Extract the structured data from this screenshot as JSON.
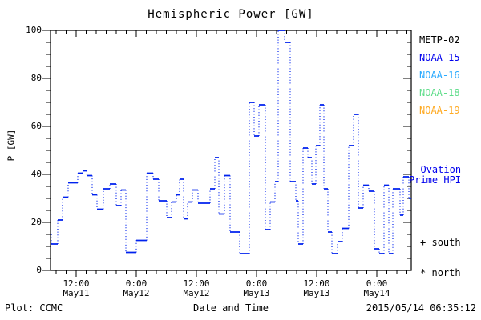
{
  "title": "Hemispheric Power [GW]",
  "axes": {
    "y_label": "P [GW]",
    "x_label": "Date and Time",
    "y_ticks": [
      0,
      20,
      40,
      60,
      80,
      100
    ],
    "y_minor_step": 5,
    "x_major_ticks": [
      {
        "hour": 12,
        "time": "12:00",
        "date": "May11"
      },
      {
        "hour": 24,
        "time": "0:00",
        "date": "May12"
      },
      {
        "hour": 36,
        "time": "12:00",
        "date": "May12"
      },
      {
        "hour": 48,
        "time": "0:00",
        "date": "May13"
      },
      {
        "hour": 60,
        "time": "12:00",
        "date": "May13"
      },
      {
        "hour": 72,
        "time": "0:00",
        "date": "May14"
      }
    ],
    "x_minor_step_hours": 2
  },
  "legend": {
    "satellites": [
      {
        "label": "METP-02",
        "color": "#000000"
      },
      {
        "label": "NOAA-15",
        "color": "#0000ee"
      },
      {
        "label": "NOAA-16",
        "color": "#2aaaff"
      },
      {
        "label": "NOAA-18",
        "color": "#5fdd8a"
      },
      {
        "label": "NOAA-19",
        "color": "#ffaa22"
      }
    ],
    "model_dash": "—",
    "model_line1": "Ovation",
    "model_line2": "Prime HPI",
    "model_color": "#0000ee",
    "marker_south_symbol": "+",
    "marker_south_label": "south",
    "marker_north_symbol": "*",
    "marker_north_label": "north"
  },
  "footer": {
    "left": "Plot: CCMC",
    "right": "2015/05/14 06:35:12"
  },
  "chart_data": {
    "type": "line",
    "title": "Hemispheric Power [GW]",
    "xlabel": "Date and Time",
    "ylabel": "P [GW]",
    "ylim": [
      0,
      100
    ],
    "x_unit": "hours since 2015-05-11 00:00 UT",
    "x_range_hours": [
      6.88,
      78.88
    ],
    "series_name": "Ovation Prime HPI",
    "line_color": "#0022ee",
    "style": "solid horizontal step segments joined by dotted vertical connectors",
    "grid": false,
    "steps_format": [
      "t_start_hours",
      "t_end_hours",
      "power_GW"
    ],
    "steps": [
      [
        6.88,
        7.04,
        15
      ],
      [
        7.04,
        8.32,
        11
      ],
      [
        8.32,
        9.28,
        21
      ],
      [
        9.28,
        10.4,
        30.5
      ],
      [
        10.4,
        12.32,
        36.5
      ],
      [
        12.32,
        13.28,
        40.5
      ],
      [
        13.28,
        14.08,
        41.5
      ],
      [
        14.08,
        15.2,
        39.5
      ],
      [
        15.2,
        16.16,
        31.5
      ],
      [
        16.16,
        17.44,
        25.5
      ],
      [
        17.44,
        18.72,
        34
      ],
      [
        18.72,
        20,
        36
      ],
      [
        20,
        20.96,
        27
      ],
      [
        20.96,
        21.92,
        33.5
      ],
      [
        21.92,
        24,
        7.5
      ],
      [
        24,
        26.08,
        12.5
      ],
      [
        26.08,
        27.36,
        40.5
      ],
      [
        27.36,
        28.48,
        38
      ],
      [
        28.48,
        30.08,
        29
      ],
      [
        30.08,
        31.04,
        22
      ],
      [
        31.04,
        32,
        28.5
      ],
      [
        32,
        32.64,
        31.5
      ],
      [
        32.64,
        33.44,
        38
      ],
      [
        33.44,
        34.24,
        21.5
      ],
      [
        34.24,
        35.2,
        28.5
      ],
      [
        35.2,
        36.32,
        33.5
      ],
      [
        36.32,
        38.72,
        28
      ],
      [
        38.72,
        39.68,
        34
      ],
      [
        39.68,
        40.48,
        47
      ],
      [
        40.48,
        41.6,
        23.5
      ],
      [
        41.6,
        42.72,
        39.5
      ],
      [
        42.72,
        44.64,
        16
      ],
      [
        44.64,
        46.56,
        7
      ],
      [
        46.56,
        47.52,
        70
      ],
      [
        47.52,
        48.48,
        56
      ],
      [
        48.48,
        49.76,
        69
      ],
      [
        49.76,
        50.72,
        17
      ],
      [
        50.72,
        51.68,
        28.5
      ],
      [
        51.68,
        52.32,
        37
      ],
      [
        52.32,
        53.6,
        100
      ],
      [
        53.6,
        54.72,
        95
      ],
      [
        54.72,
        55.84,
        37
      ],
      [
        55.84,
        56.32,
        29
      ],
      [
        56.32,
        57.28,
        11
      ],
      [
        57.28,
        58.24,
        51
      ],
      [
        58.24,
        59.04,
        47
      ],
      [
        59.04,
        59.84,
        36
      ],
      [
        59.84,
        60.64,
        52
      ],
      [
        60.64,
        61.44,
        69
      ],
      [
        61.44,
        62.24,
        34
      ],
      [
        62.24,
        63.04,
        16
      ],
      [
        63.04,
        64.16,
        7
      ],
      [
        64.16,
        65.12,
        12
      ],
      [
        65.12,
        66.4,
        17.5
      ],
      [
        66.4,
        67.36,
        52
      ],
      [
        67.36,
        68.32,
        65
      ],
      [
        68.32,
        69.28,
        26
      ],
      [
        69.28,
        70.4,
        35.5
      ],
      [
        70.4,
        71.52,
        33
      ],
      [
        71.52,
        72.48,
        9
      ],
      [
        72.48,
        73.44,
        7
      ],
      [
        73.44,
        74.4,
        35.5
      ],
      [
        74.4,
        75.2,
        7
      ],
      [
        75.2,
        76.64,
        34
      ],
      [
        76.64,
        77.28,
        23
      ],
      [
        77.28,
        78.4,
        39
      ],
      [
        78.4,
        78.88,
        30
      ]
    ]
  }
}
